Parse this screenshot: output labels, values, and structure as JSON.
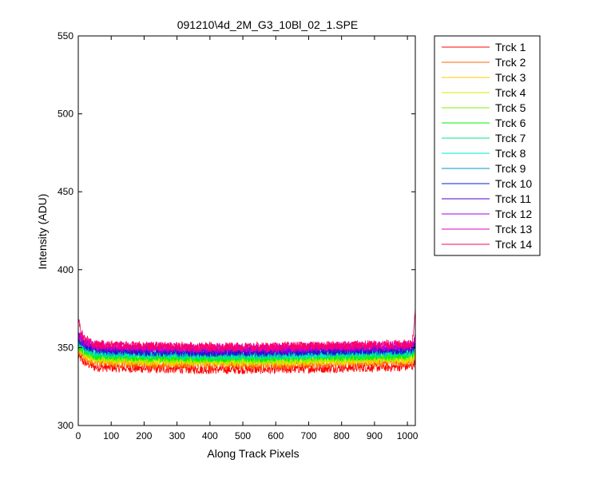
{
  "chart_data": {
    "type": "line",
    "title": "091210\\4d_2M_G3_10Bl_02_1.SPE",
    "xlabel": "Along Track Pixels",
    "ylabel": "Intensity (ADU)",
    "xlim": [
      0,
      1024
    ],
    "ylim": [
      300,
      550
    ],
    "xticks": [
      0,
      100,
      200,
      300,
      400,
      500,
      600,
      700,
      800,
      900,
      1000
    ],
    "yticks": [
      300,
      350,
      400,
      450,
      500,
      550
    ],
    "grid": false,
    "legend_position": "outside-right",
    "noise_amplitude": 3,
    "series": [
      {
        "name": "Trck 1",
        "color": "#ff0000",
        "baseline": [
          [
            0,
            345
          ],
          [
            15,
            341
          ],
          [
            50,
            337.5
          ],
          [
            200,
            336.5
          ],
          [
            400,
            336
          ],
          [
            600,
            336
          ],
          [
            800,
            337
          ],
          [
            950,
            337.5
          ],
          [
            1015,
            338
          ],
          [
            1024,
            342
          ]
        ]
      },
      {
        "name": "Trck 2",
        "color": "#ff6a00",
        "baseline": [
          [
            0,
            348
          ],
          [
            15,
            344
          ],
          [
            50,
            340.5
          ],
          [
            200,
            339.5
          ],
          [
            400,
            339
          ],
          [
            600,
            339
          ],
          [
            800,
            340
          ],
          [
            950,
            340.5
          ],
          [
            1015,
            341
          ],
          [
            1024,
            345
          ]
        ]
      },
      {
        "name": "Trck 3",
        "color": "#ffc800",
        "baseline": [
          [
            0,
            349
          ],
          [
            15,
            345.5
          ],
          [
            50,
            342
          ],
          [
            200,
            341
          ],
          [
            400,
            340.5
          ],
          [
            600,
            340.5
          ],
          [
            800,
            341.5
          ],
          [
            950,
            342
          ],
          [
            1015,
            342.5
          ],
          [
            1024,
            346
          ]
        ]
      },
      {
        "name": "Trck 4",
        "color": "#d9e800",
        "baseline": [
          [
            0,
            350
          ],
          [
            15,
            346.5
          ],
          [
            50,
            343
          ],
          [
            200,
            342
          ],
          [
            400,
            341.5
          ],
          [
            600,
            341.5
          ],
          [
            800,
            342.5
          ],
          [
            950,
            343
          ],
          [
            1015,
            343.5
          ],
          [
            1024,
            347
          ]
        ]
      },
      {
        "name": "Trck 5",
        "color": "#80f000",
        "baseline": [
          [
            0,
            351
          ],
          [
            15,
            347.5
          ],
          [
            50,
            344
          ],
          [
            200,
            343
          ],
          [
            400,
            342.5
          ],
          [
            600,
            342.5
          ],
          [
            800,
            343.5
          ],
          [
            950,
            344
          ],
          [
            1015,
            344.5
          ],
          [
            1024,
            348
          ]
        ]
      },
      {
        "name": "Trck 6",
        "color": "#00f000",
        "baseline": [
          [
            0,
            352
          ],
          [
            15,
            348.5
          ],
          [
            50,
            345
          ],
          [
            200,
            344
          ],
          [
            400,
            343.5
          ],
          [
            600,
            343.5
          ],
          [
            800,
            344.5
          ],
          [
            950,
            345
          ],
          [
            1015,
            345.5
          ],
          [
            1024,
            349
          ]
        ]
      },
      {
        "name": "Trck 7",
        "color": "#00e880",
        "baseline": [
          [
            0,
            353
          ],
          [
            15,
            349.5
          ],
          [
            50,
            346
          ],
          [
            200,
            345
          ],
          [
            400,
            344.5
          ],
          [
            600,
            344.5
          ],
          [
            800,
            345.5
          ],
          [
            950,
            346
          ],
          [
            1015,
            346.5
          ],
          [
            1024,
            350
          ]
        ]
      },
      {
        "name": "Trck 8",
        "color": "#00e8d0",
        "baseline": [
          [
            0,
            354
          ],
          [
            15,
            350.5
          ],
          [
            50,
            347
          ],
          [
            200,
            346
          ],
          [
            400,
            345.5
          ],
          [
            600,
            345.5
          ],
          [
            800,
            346.5
          ],
          [
            950,
            347
          ],
          [
            1015,
            347.5
          ],
          [
            1024,
            351
          ]
        ]
      },
      {
        "name": "Trck 9",
        "color": "#0096c8",
        "baseline": [
          [
            0,
            355
          ],
          [
            15,
            351.5
          ],
          [
            50,
            348
          ],
          [
            200,
            347
          ],
          [
            400,
            346.5
          ],
          [
            600,
            346.5
          ],
          [
            800,
            347.5
          ],
          [
            950,
            348
          ],
          [
            1015,
            348.5
          ],
          [
            1024,
            352
          ]
        ]
      },
      {
        "name": "Trck 10",
        "color": "#0020d0",
        "baseline": [
          [
            0,
            356
          ],
          [
            15,
            352
          ],
          [
            50,
            348.5
          ],
          [
            200,
            347.5
          ],
          [
            400,
            347
          ],
          [
            600,
            347
          ],
          [
            800,
            348
          ],
          [
            950,
            348.5
          ],
          [
            1015,
            349
          ],
          [
            1024,
            353
          ]
        ]
      },
      {
        "name": "Trck 11",
        "color": "#5000c8",
        "baseline": [
          [
            0,
            357
          ],
          [
            15,
            353
          ],
          [
            50,
            349.5
          ],
          [
            200,
            348.5
          ],
          [
            400,
            348
          ],
          [
            600,
            348
          ],
          [
            800,
            349
          ],
          [
            950,
            349.5
          ],
          [
            1015,
            350
          ],
          [
            1024,
            354
          ]
        ]
      },
      {
        "name": "Trck 12",
        "color": "#a000e0",
        "baseline": [
          [
            0,
            358
          ],
          [
            15,
            354
          ],
          [
            50,
            350.5
          ],
          [
            200,
            349.5
          ],
          [
            400,
            349
          ],
          [
            600,
            349
          ],
          [
            800,
            350
          ],
          [
            950,
            350.5
          ],
          [
            1015,
            351
          ],
          [
            1024,
            355
          ]
        ]
      },
      {
        "name": "Trck 13",
        "color": "#e000c0",
        "baseline": [
          [
            0,
            359
          ],
          [
            15,
            355
          ],
          [
            50,
            351.5
          ],
          [
            200,
            350.5
          ],
          [
            400,
            350
          ],
          [
            600,
            350
          ],
          [
            800,
            351
          ],
          [
            950,
            351.5
          ],
          [
            1015,
            352
          ],
          [
            1024,
            356
          ]
        ]
      },
      {
        "name": "Trck 14",
        "color": "#ff0060",
        "baseline": [
          [
            0,
            368
          ],
          [
            15,
            356
          ],
          [
            50,
            352
          ],
          [
            200,
            351
          ],
          [
            400,
            350.5
          ],
          [
            600,
            350.5
          ],
          [
            800,
            351.5
          ],
          [
            950,
            352
          ],
          [
            1015,
            352.5
          ],
          [
            1024,
            375
          ]
        ]
      }
    ]
  }
}
